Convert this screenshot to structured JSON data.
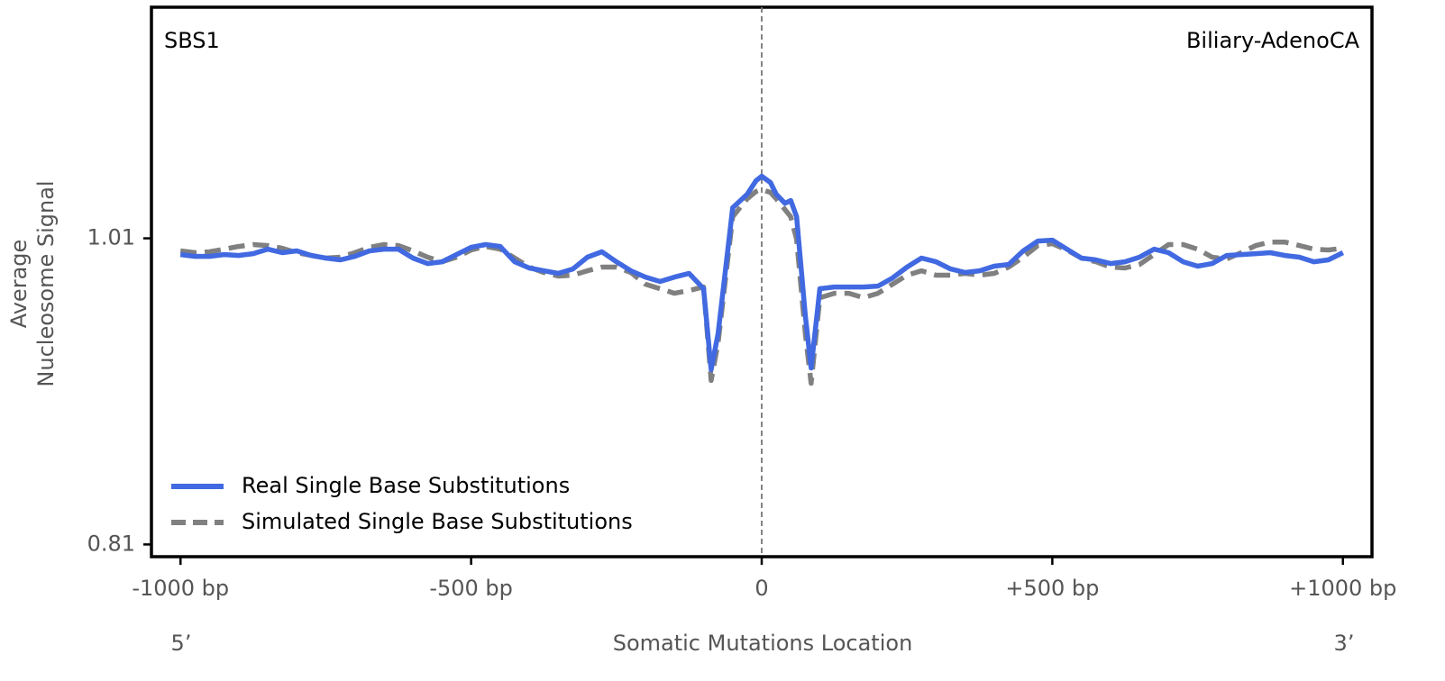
{
  "chart_data": {
    "type": "line",
    "annotations": [
      "SBS1",
      "Biliary-AdenoCA"
    ],
    "xlabel": "Somatic Mutations Location",
    "ylabel": [
      "Average",
      "Nucleosome Signal"
    ],
    "x_end_labels": [
      "5’",
      "3’"
    ],
    "x": [
      -1000,
      -975,
      -950,
      -925,
      -900,
      -875,
      -850,
      -825,
      -800,
      -775,
      -750,
      -725,
      -700,
      -675,
      -650,
      -625,
      -600,
      -575,
      -550,
      -525,
      -500,
      -475,
      -450,
      -425,
      -400,
      -375,
      -350,
      -325,
      -300,
      -275,
      -250,
      -225,
      -200,
      -175,
      -150,
      -125,
      -100,
      -87,
      -75,
      -50,
      -25,
      -10,
      0,
      15,
      25,
      40,
      50,
      60,
      75,
      85,
      100,
      125,
      150,
      175,
      200,
      225,
      250,
      275,
      300,
      325,
      350,
      375,
      400,
      425,
      450,
      475,
      500,
      525,
      550,
      575,
      600,
      625,
      650,
      675,
      700,
      725,
      750,
      775,
      800,
      825,
      850,
      875,
      900,
      925,
      950,
      975,
      1000
    ],
    "series": [
      {
        "name": "Real Single Base Substitutions",
        "color": "#4169e1",
        "linestyle": "solid",
        "values": [
          0.9994,
          0.9982,
          0.9982,
          0.9994,
          0.9988,
          1.0,
          1.0029,
          1.0006,
          1.0018,
          0.9988,
          0.9971,
          0.9959,
          0.9982,
          1.0018,
          1.0029,
          1.0029,
          0.9971,
          0.9935,
          0.9947,
          0.9994,
          1.0041,
          1.0059,
          1.0047,
          0.9947,
          0.9906,
          0.9888,
          0.9871,
          0.99,
          0.9977,
          1.0012,
          0.9947,
          0.9888,
          0.9847,
          0.9818,
          0.9847,
          0.9871,
          0.9771,
          0.9242,
          0.9477,
          1.03,
          1.0388,
          1.0476,
          1.0506,
          1.0465,
          1.0388,
          1.0329,
          1.0347,
          1.0241,
          0.9594,
          0.9253,
          0.9771,
          0.9782,
          0.9782,
          0.9782,
          0.9788,
          0.9841,
          0.9912,
          0.9971,
          0.9947,
          0.99,
          0.9877,
          0.9888,
          0.9918,
          0.9929,
          1.0018,
          1.0082,
          1.0088,
          1.0029,
          0.9971,
          0.9959,
          0.9935,
          0.9947,
          0.9977,
          1.0029,
          1.0006,
          0.9947,
          0.9918,
          0.9935,
          0.9988,
          0.9994,
          1.0,
          1.0006,
          0.9988,
          0.9977,
          0.9947,
          0.9959,
          1.0006
        ]
      },
      {
        "name": "Simulated Single Base Substitutions",
        "color": "#808080",
        "linestyle": "dashed",
        "values": [
          1.0018,
          1.0006,
          1.0012,
          1.0029,
          1.0047,
          1.0059,
          1.0053,
          1.0035,
          1.0006,
          0.9988,
          0.9971,
          0.9977,
          1.0006,
          1.0041,
          1.0059,
          1.0053,
          1.0018,
          0.9977,
          0.9947,
          0.9977,
          1.0024,
          1.0047,
          1.0029,
          0.9971,
          0.9912,
          0.9877,
          0.9853,
          0.9859,
          0.9888,
          0.9912,
          0.9912,
          0.9877,
          0.98,
          0.9771,
          0.9741,
          0.9759,
          0.9782,
          0.9171,
          0.9418,
          1.0241,
          1.0359,
          1.0406,
          1.0418,
          1.04,
          1.0359,
          1.0288,
          1.0241,
          1.0094,
          0.9477,
          0.9153,
          0.9712,
          0.9741,
          0.9741,
          0.9712,
          0.9741,
          0.98,
          0.9859,
          0.9888,
          0.9859,
          0.9859,
          0.9871,
          0.9859,
          0.9871,
          0.9912,
          0.9977,
          1.0053,
          1.0065,
          1.0024,
          0.9971,
          0.9947,
          0.9912,
          0.9906,
          0.9929,
          0.9994,
          1.0059,
          1.0059,
          1.0029,
          0.9977,
          0.9965,
          1.0006,
          1.0053,
          1.0076,
          1.0076,
          1.0053,
          1.0029,
          1.0024,
          1.0035
        ]
      }
    ],
    "xlim": [
      -1050,
      1050
    ],
    "xticks": [
      {
        "value": -1000,
        "label": "-1000 bp"
      },
      {
        "value": -500,
        "label": "-500 bp"
      },
      0,
      {
        "value": 500,
        "label": "+500 bp"
      },
      {
        "value": 1000,
        "label": "+1000 bp"
      }
    ],
    "ylim": [
      0.802,
      1.161
    ],
    "yticks": [
      0.81,
      1.01
    ],
    "vline": 0,
    "grid": false,
    "legend": "lower left"
  }
}
